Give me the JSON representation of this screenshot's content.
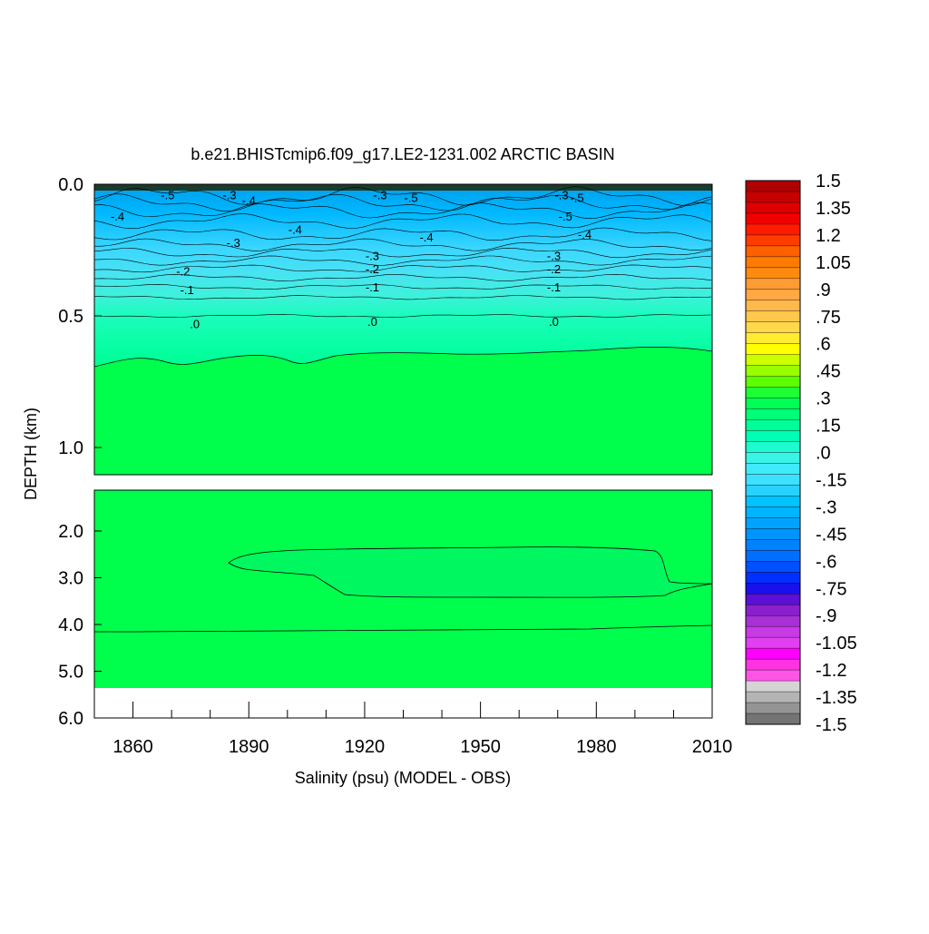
{
  "chart_data": {
    "type": "heatmap",
    "title": "b.e21.BHISTcmip6.f09_g17.LE2-1231.002 ARCTIC BASIN",
    "xlabel": "Salinity (psu) (MODEL - OBS)",
    "ylabel": "DEPTH (km)",
    "x_range": [
      1850,
      2010
    ],
    "x_ticks": [
      "1860",
      "1890",
      "1920",
      "1950",
      "1980",
      "2010"
    ],
    "upper_panel": {
      "depth_range_km": [
        0.0,
        1.1
      ],
      "y_ticks": [
        "0.0",
        "0.5",
        "1.0"
      ]
    },
    "lower_panel": {
      "depth_range_km": [
        1.1,
        6.0
      ],
      "y_ticks": [
        "2.0",
        "3.0",
        "4.0",
        "5.0",
        "6.0"
      ]
    },
    "colorbar": {
      "min": -1.5,
      "max": 1.5,
      "labels": [
        "1.5",
        "1.35",
        "1.2",
        "1.05",
        ".9",
        ".75",
        ".6",
        ".45",
        ".3",
        ".15",
        ".0",
        "-.15",
        "-.3",
        "-.45",
        "-.6",
        "-.75",
        "-.9",
        "-1.05",
        "-1.2",
        "-1.35",
        "-1.5"
      ]
    },
    "contour_labels": [
      {
        "text": "-.5",
        "year": 1869,
        "depth": 0.04
      },
      {
        "text": "-.3",
        "year": 1885,
        "depth": 0.04
      },
      {
        "text": "-.4",
        "year": 1890,
        "depth": 0.06
      },
      {
        "text": "-.4",
        "year": 1856,
        "depth": 0.12
      },
      {
        "text": "-.4",
        "year": 1902,
        "depth": 0.17
      },
      {
        "text": "-.3",
        "year": 1886,
        "depth": 0.22
      },
      {
        "text": "-.3",
        "year": 1924,
        "depth": 0.04
      },
      {
        "text": "-.5",
        "year": 1932,
        "depth": 0.05
      },
      {
        "text": "-.4",
        "year": 1936,
        "depth": 0.2
      },
      {
        "text": "-.3",
        "year": 1971,
        "depth": 0.04
      },
      {
        "text": "-.5",
        "year": 1975,
        "depth": 0.05
      },
      {
        "text": "-.5",
        "year": 1972,
        "depth": 0.12
      },
      {
        "text": "-.4",
        "year": 1977,
        "depth": 0.19
      },
      {
        "text": "-.3",
        "year": 1922,
        "depth": 0.27
      },
      {
        "text": "-.2",
        "year": 1922,
        "depth": 0.32
      },
      {
        "text": "-.1",
        "year": 1922,
        "depth": 0.39
      },
      {
        "text": ".0",
        "year": 1922,
        "depth": 0.52
      },
      {
        "text": "-.2",
        "year": 1873,
        "depth": 0.33
      },
      {
        "text": "-.1",
        "year": 1874,
        "depth": 0.4
      },
      {
        "text": ".0",
        "year": 1876,
        "depth": 0.53
      },
      {
        "text": "-.3",
        "year": 1969,
        "depth": 0.27
      },
      {
        "text": "-.2",
        "year": 1969,
        "depth": 0.32
      },
      {
        "text": "-.1",
        "year": 1969,
        "depth": 0.39
      },
      {
        "text": ".0",
        "year": 1969,
        "depth": 0.52
      }
    ]
  }
}
